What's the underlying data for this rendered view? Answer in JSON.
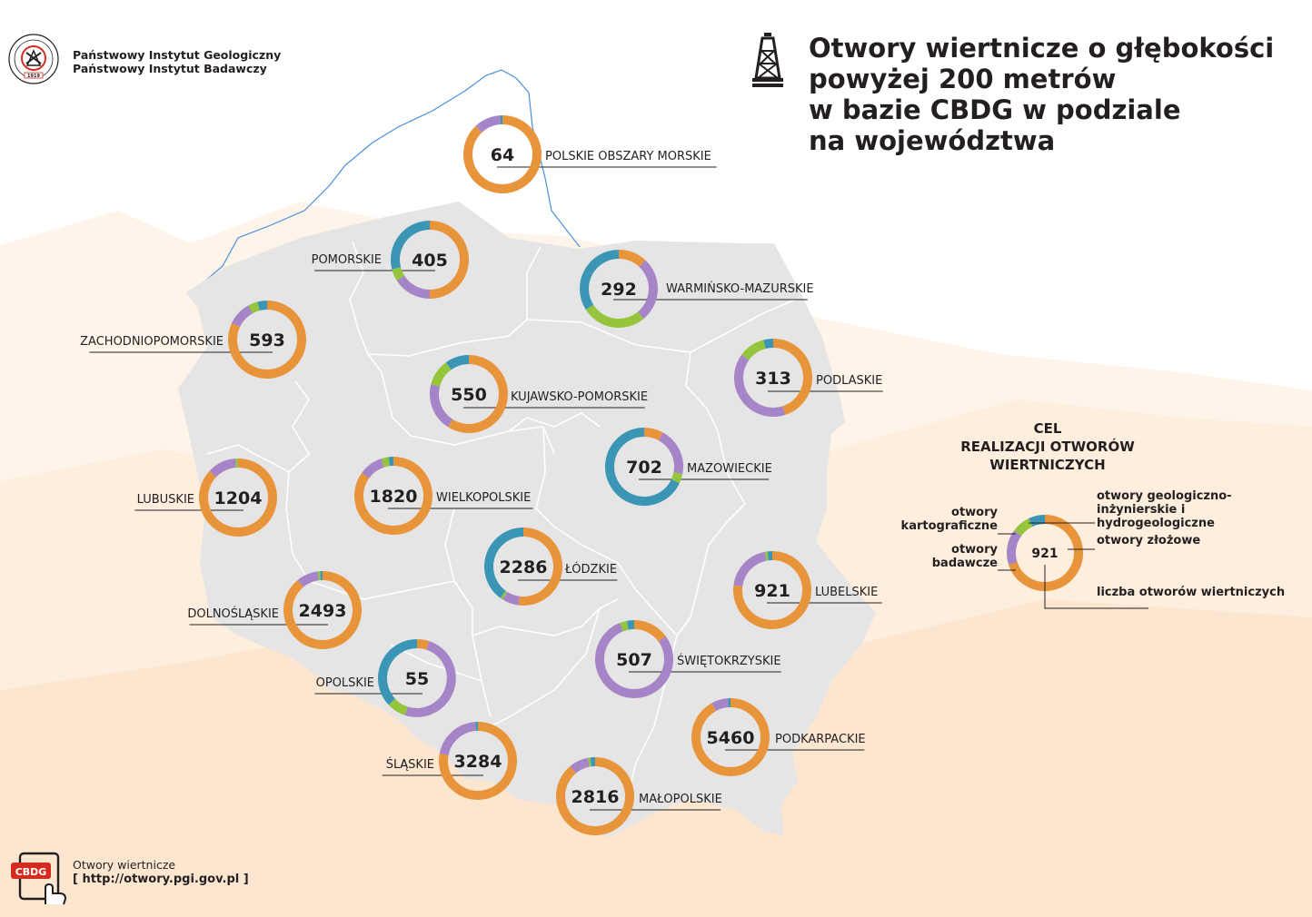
{
  "header": {
    "institute_line1": "Państwowy Instytut Geologiczny",
    "institute_line2": "Państwowy Instytut Badawczy",
    "logo_year": "1919"
  },
  "title": {
    "line1": "Otwory wiertnicze o głębokości",
    "line2": "powyżej 200 metrów",
    "line3": "w bazie CBDG w podziale",
    "line4": "na województwa"
  },
  "colors": {
    "zlozowe": "#e8943a",
    "badawcze": "#a585c7",
    "kartograficzne": "#95c43d",
    "geologiczno_inzynierskie": "#3b96b5",
    "map_fill": "#e5e5e5",
    "background_tint": "#fde7d2"
  },
  "legend": {
    "title_line1": "CEL",
    "title_line2": "REALIZACJI OTWORÓW",
    "title_line3": "WIERTNICZYCH",
    "example_value": "921",
    "label_kartograficzne": "otwory kartograficzne",
    "label_badawcze": "otwory badawcze",
    "label_geo_inz": "otwory geologiczno-inżynierskie i hydrogeologiczne",
    "label_zlozowe": "otwory złożowe",
    "label_count": "liczba otworów wiertniczych"
  },
  "chart_data": {
    "type": "pie",
    "subtype": "donut-map",
    "categories": [
      "otwory złożowe",
      "otwory badawcze",
      "otwory kartograficzne",
      "otwory geologiczno-inżynierskie i hydrogeologiczne"
    ],
    "regions": [
      {
        "name": "POLSKIE OBSZARY MORSKIE",
        "total": 64,
        "shares": [
          0.88,
          0.11,
          0.0,
          0.01
        ]
      },
      {
        "name": "POMORSKIE",
        "total": 405,
        "shares": [
          0.5,
          0.16,
          0.05,
          0.29
        ]
      },
      {
        "name": "WARMIŃSKO-MAZURSKIE",
        "total": 292,
        "shares": [
          0.12,
          0.27,
          0.27,
          0.34
        ]
      },
      {
        "name": "ZACHODNIOPOMORSKIE",
        "total": 593,
        "shares": [
          0.82,
          0.1,
          0.04,
          0.04
        ]
      },
      {
        "name": "KUJAWSKO-POMORSKIE",
        "total": 550,
        "shares": [
          0.59,
          0.2,
          0.11,
          0.1
        ]
      },
      {
        "name": "PODLASKIE",
        "total": 313,
        "shares": [
          0.45,
          0.4,
          0.11,
          0.04
        ]
      },
      {
        "name": "MAZOWIECKIE",
        "total": 702,
        "shares": [
          0.08,
          0.2,
          0.04,
          0.68
        ]
      },
      {
        "name": "LUBUSKIE",
        "total": 1204,
        "shares": [
          0.87,
          0.12,
          0.01,
          0.0
        ]
      },
      {
        "name": "WIELKOPOLSKIE",
        "total": 1820,
        "shares": [
          0.85,
          0.1,
          0.03,
          0.02
        ]
      },
      {
        "name": "ŁÓDZKIE",
        "total": 2286,
        "shares": [
          0.52,
          0.07,
          0.01,
          0.4
        ]
      },
      {
        "name": "LUBELSKIE",
        "total": 921,
        "shares": [
          0.77,
          0.2,
          0.01,
          0.02
        ]
      },
      {
        "name": "DOLNOŚLĄSKIE",
        "total": 2493,
        "shares": [
          0.89,
          0.09,
          0.01,
          0.01
        ]
      },
      {
        "name": "ŚWIĘTOKRZYSKIE",
        "total": 507,
        "shares": [
          0.15,
          0.79,
          0.03,
          0.03
        ]
      },
      {
        "name": "OPOLSKIE",
        "total": 55,
        "shares": [
          0.05,
          0.5,
          0.08,
          0.37
        ]
      },
      {
        "name": "PODKARPACKIE",
        "total": 5460,
        "shares": [
          0.92,
          0.07,
          0.0,
          0.01
        ]
      },
      {
        "name": "ŚLĄSKIE",
        "total": 3284,
        "shares": [
          0.78,
          0.21,
          0.0,
          0.01
        ]
      },
      {
        "name": "MAŁOPOLSKIE",
        "total": 2816,
        "shares": [
          0.89,
          0.08,
          0.01,
          0.02
        ]
      }
    ],
    "legend_example": {
      "total": 921,
      "shares": [
        0.7,
        0.15,
        0.08,
        0.07
      ]
    }
  },
  "footer": {
    "icon_label": "CBDG",
    "line1": "Otwory wiertnicze",
    "line2": "[ http://otwory.pgi.gov.pl ]"
  }
}
